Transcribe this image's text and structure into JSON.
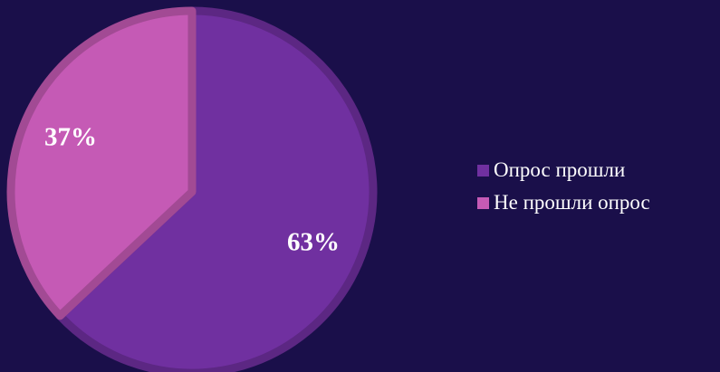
{
  "chart_data": {
    "type": "pie",
    "slices": [
      {
        "name": "Опрос прошли",
        "value": 63,
        "label": "63%",
        "color": "#7030a0"
      },
      {
        "name": "Не прошли опрос",
        "value": 37,
        "label": "37%",
        "color": "#c55ab5"
      }
    ],
    "title": "",
    "legend_position": "right"
  },
  "colors": {
    "background": "#1a0f4a"
  }
}
